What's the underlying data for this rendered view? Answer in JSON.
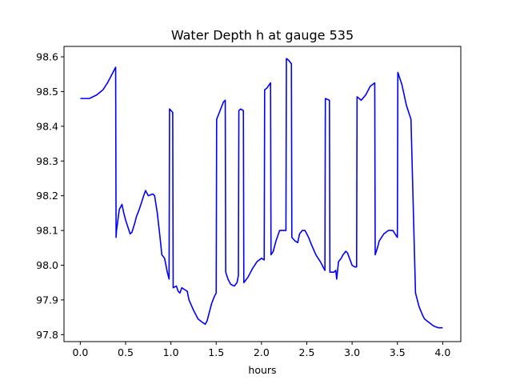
{
  "chart_data": {
    "type": "line",
    "title": "Water Depth h at gauge 535",
    "xlabel": "hours",
    "ylabel": "",
    "xlim": [
      -0.18,
      4.2
    ],
    "ylim": [
      97.78,
      98.63
    ],
    "grid": false,
    "xticks": [
      0.0,
      0.5,
      1.0,
      1.5,
      2.0,
      2.5,
      3.0,
      3.5,
      4.0
    ],
    "xtick_labels": [
      "0.0",
      "0.5",
      "1.0",
      "1.5",
      "2.0",
      "2.5",
      "3.0",
      "3.5",
      "4.0"
    ],
    "yticks": [
      97.8,
      97.9,
      98.0,
      98.1,
      98.2,
      98.3,
      98.4,
      98.5,
      98.6
    ],
    "ytick_labels": [
      "97.8",
      "97.9",
      "98.0",
      "98.1",
      "98.2",
      "98.3",
      "98.4",
      "98.5",
      "98.6"
    ],
    "series": [
      {
        "color": "#0000ff",
        "x": [
          0.0,
          0.1,
          0.18,
          0.25,
          0.3,
          0.35,
          0.39,
          0.395,
          0.4,
          0.43,
          0.46,
          0.48,
          0.5,
          0.55,
          0.57,
          0.6,
          0.62,
          0.65,
          0.7,
          0.72,
          0.75,
          0.8,
          0.82,
          0.85,
          0.88,
          0.9,
          0.93,
          0.96,
          0.98,
          0.985,
          1.02,
          1.025,
          1.06,
          1.08,
          1.1,
          1.12,
          1.15,
          1.18,
          1.2,
          1.25,
          1.3,
          1.35,
          1.38,
          1.4,
          1.45,
          1.48,
          1.5,
          1.505,
          1.55,
          1.58,
          1.6,
          1.605,
          1.63,
          1.66,
          1.7,
          1.73,
          1.745,
          1.75,
          1.77,
          1.8,
          1.805,
          1.85,
          1.9,
          1.95,
          2.0,
          2.03,
          2.035,
          2.06,
          2.1,
          2.105,
          2.13,
          2.16,
          2.2,
          2.23,
          2.25,
          2.27,
          2.275,
          2.3,
          2.33,
          2.335,
          2.37,
          2.4,
          2.42,
          2.45,
          2.48,
          2.52,
          2.55,
          2.6,
          2.65,
          2.69,
          2.7,
          2.705,
          2.75,
          2.755,
          2.8,
          2.82,
          2.83,
          2.85,
          2.88,
          2.9,
          2.93,
          2.95,
          3.0,
          3.03,
          3.05,
          3.055,
          3.1,
          3.15,
          3.2,
          3.25,
          3.255,
          3.28,
          3.3,
          3.35,
          3.4,
          3.45,
          3.5,
          3.505,
          3.55,
          3.6,
          3.65,
          3.7,
          3.74,
          3.78,
          3.8,
          3.85,
          3.9,
          3.95,
          4.0
        ],
        "y": [
          98.48,
          98.48,
          98.49,
          98.505,
          98.525,
          98.55,
          98.57,
          98.08,
          98.1,
          98.16,
          98.175,
          98.15,
          98.13,
          98.09,
          98.095,
          98.12,
          98.14,
          98.16,
          98.2,
          98.215,
          98.2,
          98.205,
          98.2,
          98.15,
          98.08,
          98.03,
          98.02,
          97.98,
          97.96,
          98.45,
          98.44,
          97.935,
          97.94,
          97.925,
          97.92,
          97.935,
          97.93,
          97.925,
          97.9,
          97.87,
          97.845,
          97.835,
          97.83,
          97.84,
          97.89,
          97.91,
          97.92,
          98.42,
          98.45,
          98.47,
          98.475,
          97.98,
          97.96,
          97.945,
          97.94,
          97.95,
          97.97,
          98.445,
          98.45,
          98.445,
          97.95,
          97.965,
          97.99,
          98.01,
          98.02,
          98.015,
          98.505,
          98.51,
          98.525,
          98.03,
          98.04,
          98.07,
          98.1,
          98.1,
          98.1,
          98.1,
          98.595,
          98.59,
          98.58,
          98.08,
          98.07,
          98.065,
          98.09,
          98.1,
          98.1,
          98.08,
          98.06,
          98.03,
          98.01,
          97.99,
          97.985,
          98.48,
          98.475,
          97.98,
          97.98,
          97.985,
          97.96,
          98.01,
          98.02,
          98.03,
          98.04,
          98.035,
          98.0,
          97.995,
          97.995,
          98.485,
          98.475,
          98.49,
          98.515,
          98.525,
          98.03,
          98.05,
          98.07,
          98.09,
          98.1,
          98.1,
          98.08,
          98.555,
          98.52,
          98.46,
          98.42,
          97.92,
          97.88,
          97.855,
          97.845,
          97.835,
          97.825,
          97.82,
          97.82
        ]
      }
    ]
  }
}
